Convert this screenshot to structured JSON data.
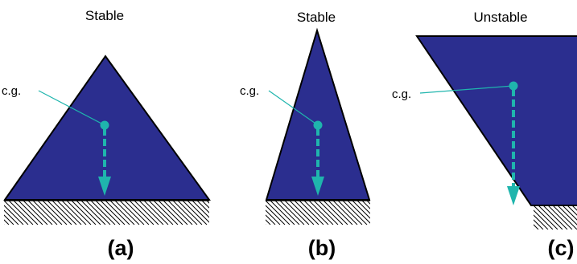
{
  "colors": {
    "shape_fill": "#2b2e8f",
    "cg_marker": "#1fb5ad",
    "outline": "#000000"
  },
  "panels": [
    {
      "id": "a",
      "title": "Stable",
      "cg_label": "c.g.",
      "caption": "(a)"
    },
    {
      "id": "b",
      "title": "Stable",
      "cg_label": "c.g.",
      "caption": "(b)"
    },
    {
      "id": "c",
      "title": "Unstable",
      "cg_label": "c.g.",
      "caption": "(c)"
    }
  ]
}
